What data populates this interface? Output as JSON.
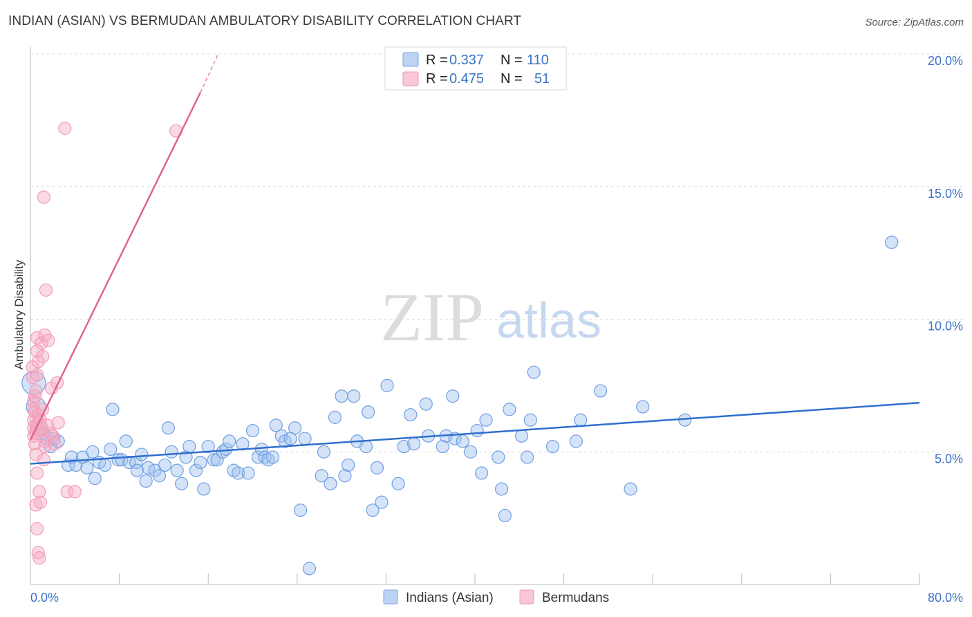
{
  "title": "INDIAN (ASIAN) VS BERMUDAN AMBULATORY DISABILITY CORRELATION CHART",
  "source": "Source: ZipAtlas.com",
  "watermark": {
    "part1": "ZIP",
    "part2": "atlas"
  },
  "legend": {
    "rows": [
      {
        "r_label": "R = ",
        "r_value": "0.337",
        "n_label": "N = ",
        "n_value": "110",
        "color": "#a9c6ef"
      },
      {
        "r_label": "R = ",
        "r_value": "0.475",
        "n_label": "N = ",
        "n_value": "51",
        "color": "#f6b3c8"
      }
    ]
  },
  "bottom_legend": [
    "Indians (Asian)",
    "Bermudans"
  ],
  "chart_data": {
    "type": "scatter",
    "ylabel": "Ambulatory Disability",
    "xlim": [
      0,
      80
    ],
    "ylim": [
      0,
      20
    ],
    "x_tick_labels": [
      "0.0%",
      "80.0%"
    ],
    "y_ticks": [
      5,
      10,
      15,
      20
    ],
    "y_tick_labels": [
      "5.0%",
      "10.0%",
      "15.0%",
      "20.0%"
    ],
    "grid": true,
    "legend_position": "top-center",
    "series": [
      {
        "name": "Indians (Asian)",
        "color": "#6f9fe0",
        "line_color": "#2f6fce",
        "trend": {
          "x0": 0,
          "y0": 4.55,
          "x1": 80,
          "y1": 6.85
        },
        "points": [
          [
            0.3,
            7.6
          ],
          [
            0.5,
            6.7
          ],
          [
            0.8,
            5.9
          ],
          [
            1.2,
            5.7
          ],
          [
            1.5,
            5.5
          ],
          [
            1.8,
            5.2
          ],
          [
            2.1,
            5.5
          ],
          [
            2.5,
            5.4
          ],
          [
            3.4,
            4.5
          ],
          [
            3.7,
            4.8
          ],
          [
            4.1,
            4.5
          ],
          [
            4.7,
            4.8
          ],
          [
            5.1,
            4.4
          ],
          [
            5.6,
            5.0
          ],
          [
            5.8,
            4.0
          ],
          [
            6.2,
            4.6
          ],
          [
            6.7,
            4.5
          ],
          [
            7.2,
            5.1
          ],
          [
            7.4,
            6.6
          ],
          [
            7.9,
            4.7
          ],
          [
            8.2,
            4.7
          ],
          [
            8.6,
            5.4
          ],
          [
            8.9,
            4.6
          ],
          [
            9.5,
            4.6
          ],
          [
            9.6,
            4.3
          ],
          [
            10.0,
            4.9
          ],
          [
            10.4,
            3.9
          ],
          [
            10.6,
            4.4
          ],
          [
            11.2,
            4.3
          ],
          [
            11.6,
            4.1
          ],
          [
            12.1,
            4.5
          ],
          [
            12.4,
            5.9
          ],
          [
            12.7,
            5.0
          ],
          [
            13.2,
            4.3
          ],
          [
            13.6,
            3.8
          ],
          [
            14.0,
            4.8
          ],
          [
            14.3,
            5.2
          ],
          [
            14.9,
            4.3
          ],
          [
            15.3,
            4.6
          ],
          [
            15.6,
            3.6
          ],
          [
            16.0,
            5.2
          ],
          [
            16.5,
            4.7
          ],
          [
            16.8,
            4.7
          ],
          [
            17.3,
            5.0
          ],
          [
            17.6,
            5.1
          ],
          [
            17.9,
            5.4
          ],
          [
            18.3,
            4.3
          ],
          [
            18.7,
            4.2
          ],
          [
            19.1,
            5.3
          ],
          [
            19.6,
            4.2
          ],
          [
            20.0,
            5.8
          ],
          [
            20.5,
            4.8
          ],
          [
            20.8,
            5.1
          ],
          [
            21.1,
            4.8
          ],
          [
            21.4,
            4.7
          ],
          [
            21.8,
            4.8
          ],
          [
            22.1,
            6.0
          ],
          [
            22.6,
            5.6
          ],
          [
            22.9,
            5.4
          ],
          [
            23.4,
            5.5
          ],
          [
            23.8,
            5.9
          ],
          [
            24.3,
            2.8
          ],
          [
            24.7,
            5.5
          ],
          [
            25.1,
            0.6
          ],
          [
            26.2,
            4.1
          ],
          [
            26.4,
            5.0
          ],
          [
            27.0,
            3.8
          ],
          [
            27.4,
            6.3
          ],
          [
            28.0,
            7.1
          ],
          [
            28.3,
            4.1
          ],
          [
            28.6,
            4.5
          ],
          [
            29.1,
            7.1
          ],
          [
            29.4,
            5.4
          ],
          [
            30.2,
            5.2
          ],
          [
            30.4,
            6.5
          ],
          [
            30.8,
            2.8
          ],
          [
            31.2,
            4.4
          ],
          [
            31.6,
            3.1
          ],
          [
            32.1,
            7.5
          ],
          [
            33.1,
            3.8
          ],
          [
            33.6,
            5.2
          ],
          [
            34.2,
            6.4
          ],
          [
            34.5,
            5.3
          ],
          [
            35.6,
            6.8
          ],
          [
            35.8,
            5.6
          ],
          [
            37.1,
            5.2
          ],
          [
            37.4,
            5.6
          ],
          [
            38.0,
            7.1
          ],
          [
            38.2,
            5.5
          ],
          [
            38.9,
            5.4
          ],
          [
            39.6,
            5.0
          ],
          [
            40.2,
            5.8
          ],
          [
            40.6,
            4.2
          ],
          [
            41.0,
            6.2
          ],
          [
            42.1,
            4.8
          ],
          [
            42.4,
            3.6
          ],
          [
            42.7,
            2.6
          ],
          [
            43.1,
            6.6
          ],
          [
            44.2,
            5.6
          ],
          [
            44.7,
            4.8
          ],
          [
            45.0,
            6.2
          ],
          [
            45.3,
            8.0
          ],
          [
            47.0,
            5.2
          ],
          [
            49.1,
            5.4
          ],
          [
            49.5,
            6.2
          ],
          [
            51.3,
            7.3
          ],
          [
            54.0,
            3.6
          ],
          [
            55.1,
            6.7
          ],
          [
            58.9,
            6.2
          ],
          [
            77.5,
            12.9
          ]
        ]
      },
      {
        "name": "Bermudans",
        "color": "#f39bb8",
        "line_color": "#e0648d",
        "trend": {
          "x0": 0,
          "y0": 5.45,
          "x1": 15.3,
          "y1": 18.55
        },
        "trend_dashed": {
          "x0": 15.3,
          "y0": 18.55,
          "x1": 16.9,
          "y1": 20.0
        },
        "points": [
          [
            0.2,
            8.2
          ],
          [
            0.2,
            7.8
          ],
          [
            0.3,
            6.9
          ],
          [
            0.3,
            6.6
          ],
          [
            0.3,
            6.2
          ],
          [
            0.3,
            5.9
          ],
          [
            0.3,
            5.6
          ],
          [
            0.4,
            5.3
          ],
          [
            0.4,
            7.1
          ],
          [
            0.4,
            6.5
          ],
          [
            0.5,
            7.3
          ],
          [
            0.5,
            6.0
          ],
          [
            0.5,
            5.7
          ],
          [
            0.5,
            4.9
          ],
          [
            0.6,
            4.2
          ],
          [
            0.6,
            9.3
          ],
          [
            0.6,
            8.8
          ],
          [
            0.6,
            7.9
          ],
          [
            0.7,
            8.4
          ],
          [
            0.7,
            6.4
          ],
          [
            0.7,
            6.1
          ],
          [
            0.7,
            5.8
          ],
          [
            0.5,
            3.0
          ],
          [
            0.6,
            2.1
          ],
          [
            0.7,
            1.2
          ],
          [
            0.8,
            1.0
          ],
          [
            0.8,
            3.5
          ],
          [
            0.9,
            3.1
          ],
          [
            0.9,
            6.2
          ],
          [
            1.0,
            5.9
          ],
          [
            1.0,
            9.1
          ],
          [
            1.1,
            8.6
          ],
          [
            1.1,
            6.6
          ],
          [
            1.2,
            4.7
          ],
          [
            1.2,
            14.6
          ],
          [
            1.3,
            9.4
          ],
          [
            1.3,
            5.4
          ],
          [
            1.3,
            5.2
          ],
          [
            1.4,
            11.1
          ],
          [
            1.5,
            6.0
          ],
          [
            1.6,
            9.2
          ],
          [
            1.8,
            5.7
          ],
          [
            1.9,
            7.4
          ],
          [
            2.0,
            5.6
          ],
          [
            2.2,
            5.3
          ],
          [
            2.4,
            7.6
          ],
          [
            2.5,
            6.1
          ],
          [
            3.1,
            17.2
          ],
          [
            3.3,
            3.5
          ],
          [
            4.0,
            3.5
          ],
          [
            13.1,
            17.1
          ]
        ]
      }
    ]
  }
}
